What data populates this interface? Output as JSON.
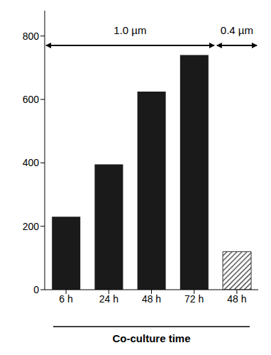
{
  "chart_data": {
    "type": "bar",
    "categories": [
      "6 h",
      "24 h",
      "48 h",
      "72 h",
      "48 h"
    ],
    "series": [
      {
        "values": [
          230,
          395,
          625,
          740,
          null
        ],
        "color": "#1a1a1a"
      },
      {
        "values": [
          null,
          null,
          null,
          null,
          120
        ],
        "color": "#333333",
        "line_style": "hatched"
      }
    ],
    "stacked": true,
    "ylim": [
      0,
      880
    ],
    "yticks": [
      0,
      200,
      400,
      600,
      800
    ],
    "xlabel": "Co-culture time",
    "annotations": [
      {
        "text": "1.0 µm",
        "from": 0,
        "to": 3
      },
      {
        "text": "0.4 µm",
        "from": 4,
        "to": 4
      }
    ]
  }
}
